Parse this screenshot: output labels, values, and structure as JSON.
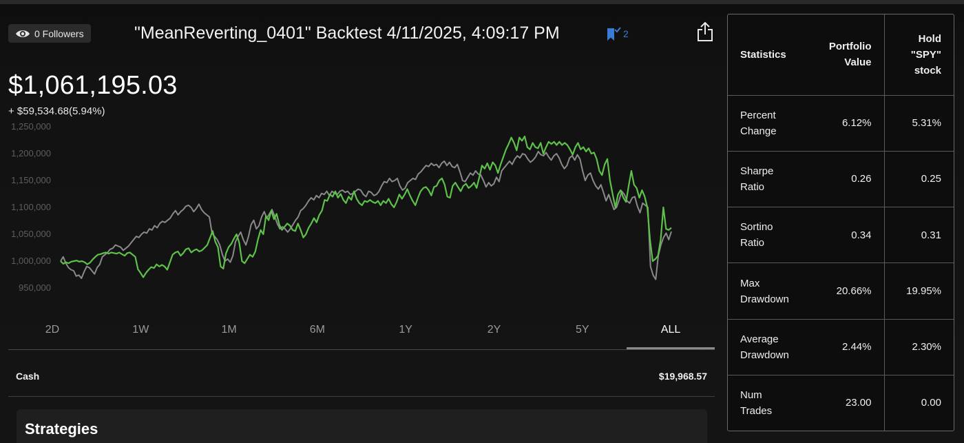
{
  "header": {
    "followers_label": "0 Followers",
    "title": "\"MeanReverting_0401\" Backtest 4/11/2025, 4:09:17 PM",
    "bookmark_count": "2"
  },
  "portfolio": {
    "value": "$1,061,195.03",
    "change": "+ $59,534.68(5.94%)"
  },
  "colors": {
    "portfolio_line": "#5ec24a",
    "benchmark_line": "#8a8a8a",
    "bookmark": "#3a7bd5"
  },
  "chart_data": {
    "type": "line",
    "y_ticks": [
      "1,250,000",
      "1,200,000",
      "1,150,000",
      "1,100,000",
      "1,050,000",
      "1,000,000",
      "950,000"
    ],
    "ylim": [
      950000,
      1250000
    ],
    "grid": false,
    "series": [
      {
        "color": "#5ec24a",
        "values": [
          1000000,
          995000,
          998000,
          996000,
          999000,
          1000000,
          1001000,
          999000,
          1000000,
          998000,
          994000,
          997000,
          1003000,
          1008000,
          1012000,
          1013000,
          1015000,
          1016000,
          1014000,
          1016000,
          1015000,
          1014000,
          1016000,
          1013000,
          1010000,
          1015000,
          1016000,
          1012000,
          1008000,
          985000,
          978000,
          970000,
          978000,
          984000,
          989000,
          987000,
          994000,
          990000,
          993000,
          990000,
          984000,
          998000,
          1012000,
          1016000,
          1018000,
          1010000,
          1015000,
          1022000,
          1024000,
          1016000,
          1020000,
          1022000,
          1018000,
          1020000,
          1025000,
          1030000,
          1043000,
          1056000,
          1036000,
          1026000,
          990000,
          986000,
          1014000,
          1026000,
          1032000,
          1042000,
          1050000,
          1034000,
          1000000,
          996000,
          1004000,
          1012000,
          1008000,
          1018000,
          1040000,
          1058000,
          1050000,
          1084000,
          1076000,
          1094000,
          1078000,
          1088000,
          1068000,
          1058000,
          1064000,
          1070000,
          1066000,
          1058000,
          1056000,
          1070000,
          1058000,
          1044000,
          1050000,
          1062000,
          1070000,
          1080000,
          1072000,
          1086000,
          1094000,
          1114000,
          1112000,
          1124000,
          1120000,
          1130000,
          1118000,
          1125000,
          1114000,
          1108000,
          1120000,
          1114000,
          1130000,
          1116000,
          1108000,
          1104000,
          1112000,
          1110000,
          1114000,
          1110000,
          1108000,
          1112000,
          1104000,
          1112000,
          1108000,
          1116000,
          1106000,
          1100000,
          1110000,
          1124000,
          1116000,
          1124000,
          1134000,
          1122000,
          1112000,
          1104000,
          1118000,
          1130000,
          1136000,
          1138000,
          1132000,
          1122000,
          1138000,
          1140000,
          1150000,
          1154000,
          1142000,
          1120000,
          1118000,
          1140000,
          1146000,
          1138000,
          1130000,
          1140000,
          1144000,
          1136000,
          1140000,
          1146000,
          1136000,
          1156000,
          1178000,
          1172000,
          1182000,
          1170000,
          1184000,
          1178000,
          1164000,
          1180000,
          1194000,
          1208000,
          1218000,
          1230000,
          1220000,
          1206000,
          1230000,
          1224000,
          1232000,
          1212000,
          1208000,
          1220000,
          1212000,
          1210000,
          1220000,
          1200000,
          1212000,
          1222000,
          1218000,
          1222000,
          1216000,
          1222000,
          1216000,
          1220000,
          1216000,
          1208000,
          1198000,
          1212000,
          1220000,
          1208000,
          1212000,
          1204000,
          1210000,
          1200000,
          1202000,
          1190000,
          1168000,
          1160000,
          1180000,
          1190000,
          1150000,
          1124000,
          1100000,
          1124000,
          1132000,
          1118000,
          1110000,
          1140000,
          1168000,
          1142000,
          1136000,
          1118000,
          1132000,
          1120000,
          1100000,
          1040000,
          1000000,
          1004000,
          1010000,
          1040000,
          1100000,
          1060000,
          1058000,
          1062000
        ]
      },
      {
        "color": "#8a8a8a",
        "values": [
          1000000,
          1008000,
          996000,
          988000,
          984000,
          982000,
          972000,
          974000,
          968000,
          980000,
          990000,
          988000,
          982000,
          976000,
          988000,
          994000,
          1008000,
          1012000,
          1016000,
          1022000,
          1024000,
          1030000,
          1028000,
          1026000,
          1020000,
          1024000,
          1028000,
          1034000,
          1040000,
          1046000,
          1044000,
          1050000,
          1054000,
          1052000,
          1060000,
          1058000,
          1066000,
          1062000,
          1070000,
          1074000,
          1072000,
          1076000,
          1080000,
          1088000,
          1094000,
          1086000,
          1092000,
          1096000,
          1102000,
          1104000,
          1100000,
          1092000,
          1098000,
          1106000,
          1096000,
          1090000,
          1086000,
          1082000,
          1052000,
          1046000,
          1040000,
          1030000,
          1012000,
          1000000,
          1004000,
          998000,
          1010000,
          1036000,
          1046000,
          1054000,
          1040000,
          1030000,
          1046000,
          1068000,
          1076000,
          1060000,
          1066000,
          1082000,
          1092000,
          1080000,
          1088000,
          1096000,
          1084000,
          1070000,
          1060000,
          1064000,
          1060000,
          1054000,
          1060000,
          1068000,
          1076000,
          1082000,
          1094000,
          1098000,
          1104000,
          1112000,
          1118000,
          1114000,
          1122000,
          1118000,
          1126000,
          1124000,
          1130000,
          1122000,
          1130000,
          1126000,
          1124000,
          1130000,
          1132000,
          1128000,
          1130000,
          1124000,
          1126000,
          1130000,
          1134000,
          1132000,
          1124000,
          1120000,
          1130000,
          1128000,
          1122000,
          1124000,
          1130000,
          1140000,
          1148000,
          1146000,
          1154000,
          1148000,
          1150000,
          1154000,
          1140000,
          1132000,
          1136000,
          1146000,
          1150000,
          1154000,
          1152000,
          1162000,
          1166000,
          1172000,
          1178000,
          1176000,
          1182000,
          1178000,
          1180000,
          1174000,
          1182000,
          1186000,
          1178000,
          1184000,
          1176000,
          1174000,
          1180000,
          1166000,
          1150000,
          1148000,
          1156000,
          1164000,
          1160000,
          1168000,
          1162000,
          1160000,
          1150000,
          1138000,
          1146000,
          1140000,
          1144000,
          1156000,
          1148000,
          1168000,
          1174000,
          1180000,
          1186000,
          1180000,
          1190000,
          1196000,
          1192000,
          1200000,
          1198000,
          1190000,
          1184000,
          1188000,
          1194000,
          1204000,
          1198000,
          1196000,
          1202000,
          1194000,
          1188000,
          1196000,
          1200000,
          1192000,
          1180000,
          1172000,
          1178000,
          1192000,
          1196000,
          1188000,
          1198000,
          1190000,
          1168000,
          1150000,
          1160000,
          1164000,
          1150000,
          1140000,
          1134000,
          1142000,
          1128000,
          1112000,
          1124000,
          1110000,
          1096000,
          1100000,
          1114000,
          1130000,
          1124000,
          1112000,
          1108000,
          1118000,
          1120000,
          1102000,
          1090000,
          1108000,
          1104000,
          1100000,
          990000,
          974000,
          966000,
          1010000,
          1030000,
          1044000,
          1052000,
          1040000,
          1055000
        ]
      }
    ]
  },
  "timeframes": [
    "2D",
    "1W",
    "1M",
    "6M",
    "1Y",
    "2Y",
    "5Y",
    "ALL"
  ],
  "active_timeframe_index": 7,
  "cash": {
    "label": "Cash",
    "value": "$19,968.57"
  },
  "strategies": {
    "title": "Strategies"
  },
  "stats": {
    "headers": [
      "Statistics",
      "Portfolio Value",
      "Hold \"SPY\" stock"
    ],
    "rows": [
      {
        "label": "Percent Change",
        "portfolio": "6.12%",
        "hold": "5.31%"
      },
      {
        "label": "Sharpe Ratio",
        "portfolio": "0.26",
        "hold": "0.25"
      },
      {
        "label": "Sortino Ratio",
        "portfolio": "0.34",
        "hold": "0.31"
      },
      {
        "label": "Max Drawdown",
        "portfolio": "20.66%",
        "hold": "19.95%"
      },
      {
        "label": "Average Drawdown",
        "portfolio": "2.44%",
        "hold": "2.30%"
      },
      {
        "label": "Num Trades",
        "portfolio": "23.00",
        "hold": "0.00"
      }
    ]
  }
}
